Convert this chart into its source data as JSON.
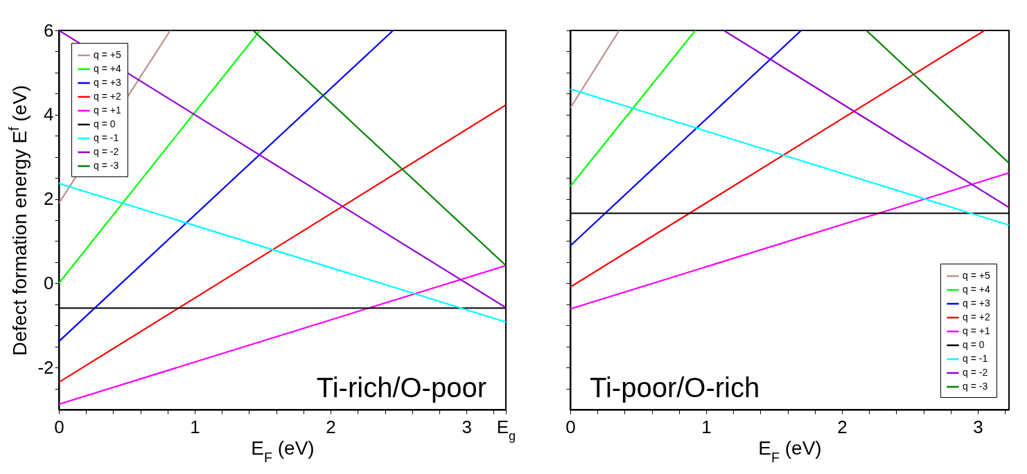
{
  "chart_data": [
    {
      "type": "line",
      "xlabel": "E$_{F}$ (eV)",
      "ylabel": "Defect formation energy E$^{f}$ (eV)",
      "xlim": [
        0,
        3.29
      ],
      "ylim": [
        -3,
        6
      ],
      "xticks": [
        0,
        {
          "value": 0.2,
          "label": null
        },
        {
          "value": 0.4,
          "label": null
        },
        {
          "value": 0.6,
          "label": null
        },
        {
          "value": 0.8,
          "label": null
        },
        1,
        {
          "value": 1.2,
          "label": null
        },
        {
          "value": 1.4,
          "label": null
        },
        {
          "value": 1.6,
          "label": null
        },
        {
          "value": 1.8,
          "label": null
        },
        2,
        {
          "value": 2.2,
          "label": null
        },
        {
          "value": 2.4,
          "label": null
        },
        {
          "value": 2.6,
          "label": null
        },
        {
          "value": 2.8,
          "label": null
        },
        3,
        {
          "value": 3.2,
          "label": null
        },
        {
          "value": 3.29,
          "label": "E$_{g}$"
        }
      ],
      "yticks": [
        -2,
        {
          "value": -2.5,
          "label": null
        },
        {
          "value": -1.5,
          "label": null
        },
        {
          "value": -1,
          "label": null
        },
        {
          "value": -0.5,
          "label": null
        },
        0,
        {
          "value": 0.5,
          "label": null
        },
        {
          "value": 1,
          "label": null
        },
        {
          "value": 1.5,
          "label": null
        },
        2,
        {
          "value": 2.5,
          "label": null
        },
        {
          "value": 3,
          "label": null
        },
        {
          "value": 3.5,
          "label": null
        },
        4,
        {
          "value": 4.5,
          "label": null
        },
        {
          "value": 5,
          "label": null
        },
        {
          "value": 5.5,
          "label": null
        },
        6
      ],
      "legend": "top left",
      "annotations": [
        "Ti-rich/O-poor"
      ],
      "series": [
        {
          "name": "q = +5",
          "color": "#bc8f8f",
          "x": [
            0,
            0.82
          ],
          "values": [
            1.9,
            6
          ]
        },
        {
          "name": "q = +4",
          "color": "#00ff00",
          "x": [
            0,
            1.48
          ],
          "values": [
            0,
            6
          ]
        },
        {
          "name": "q = +3",
          "color": "#0000ff",
          "x": [
            0,
            2.46
          ],
          "values": [
            -1.38,
            6
          ]
        },
        {
          "name": "q = +2",
          "color": "#ff0000",
          "x": [
            0,
            3.29
          ],
          "values": [
            -2.35,
            4.23
          ]
        },
        {
          "name": "q = +1",
          "color": "#ff00ff",
          "x": [
            0,
            3.29
          ],
          "values": [
            -2.87,
            0.42
          ]
        },
        {
          "name": "q =  0",
          "color": "#000000",
          "x": [
            0,
            3.29
          ],
          "values": [
            -0.59,
            -0.59
          ]
        },
        {
          "name": "q =  -1",
          "color": "#00ffff",
          "x": [
            0,
            3.29
          ],
          "values": [
            2.37,
            -0.92
          ]
        },
        {
          "name": "q =  -2",
          "color": "#9400d3",
          "x": [
            0,
            3.29
          ],
          "values": [
            6,
            -0.58
          ]
        },
        {
          "name": "q =  -3",
          "color": "#008000",
          "x": [
            1.43,
            3.29
          ],
          "values": [
            6,
            0.42
          ]
        }
      ]
    },
    {
      "type": "line",
      "xlabel": "E$_{F}$ (eV)",
      "xlim": [
        0,
        3.23
      ],
      "ylim": [
        -3,
        6
      ],
      "tick_labels": "x",
      "xticks": [
        0,
        {
          "value": 0.2,
          "label": null
        },
        {
          "value": 0.4,
          "label": null
        },
        {
          "value": 0.6,
          "label": null
        },
        {
          "value": 0.8,
          "label": null
        },
        1,
        {
          "value": 1.2,
          "label": null
        },
        {
          "value": 1.4,
          "label": null
        },
        {
          "value": 1.6,
          "label": null
        },
        {
          "value": 1.8,
          "label": null
        },
        2,
        {
          "value": 2.2,
          "label": null
        },
        {
          "value": 2.4,
          "label": null
        },
        {
          "value": 2.6,
          "label": null
        },
        {
          "value": 2.8,
          "label": null
        },
        3,
        {
          "value": 3.2,
          "label": null
        }
      ],
      "yticks": [
        {
          "value": -2,
          "label": null
        },
        {
          "value": -2.5,
          "label": null
        },
        {
          "value": -1.5,
          "label": null
        },
        {
          "value": -1,
          "label": null
        },
        {
          "value": -0.5,
          "label": null
        },
        {
          "value": 0,
          "label": null
        },
        {
          "value": 0.5,
          "label": null
        },
        {
          "value": 1,
          "label": null
        },
        {
          "value": 1.5,
          "label": null
        },
        {
          "value": 2,
          "label": null
        },
        {
          "value": 2.5,
          "label": null
        },
        {
          "value": 3,
          "label": null
        },
        {
          "value": 3.5,
          "label": null
        },
        {
          "value": 4,
          "label": null
        },
        {
          "value": 4.5,
          "label": null
        },
        {
          "value": 5,
          "label": null
        },
        {
          "value": 5.5,
          "label": null
        },
        {
          "value": 6,
          "label": null
        }
      ],
      "legend": "bottom right",
      "annotations": [
        "Ti-poor/O-rich"
      ],
      "series": [
        {
          "name": "q = +5",
          "color": "#bc8f8f",
          "x": [
            0,
            0.36
          ],
          "values": [
            4.16,
            6
          ]
        },
        {
          "name": "q = +4",
          "color": "#00ff00",
          "x": [
            0,
            0.92
          ],
          "values": [
            2.3,
            6
          ]
        },
        {
          "name": "q = +3",
          "color": "#0000ff",
          "x": [
            0,
            1.7
          ],
          "values": [
            0.89,
            6
          ]
        },
        {
          "name": "q = +2",
          "color": "#ff0000",
          "x": [
            0,
            3.05
          ],
          "values": [
            -0.09,
            6
          ]
        },
        {
          "name": "q = +1",
          "color": "#ff00ff",
          "x": [
            0,
            3.23
          ],
          "values": [
            -0.61,
            2.62
          ]
        },
        {
          "name": "q =  0",
          "color": "#000000",
          "x": [
            0,
            3.23
          ],
          "values": [
            1.66,
            1.66
          ]
        },
        {
          "name": "q =  -1",
          "color": "#00ffff",
          "x": [
            0,
            3.23
          ],
          "values": [
            4.61,
            1.38
          ]
        },
        {
          "name": "q =  -2",
          "color": "#9400d3",
          "x": [
            1.13,
            3.23
          ],
          "values": [
            6,
            1.8
          ]
        },
        {
          "name": "q =  -3",
          "color": "#008000",
          "x": [
            2.18,
            3.23
          ],
          "values": [
            6,
            2.85
          ]
        }
      ]
    }
  ]
}
